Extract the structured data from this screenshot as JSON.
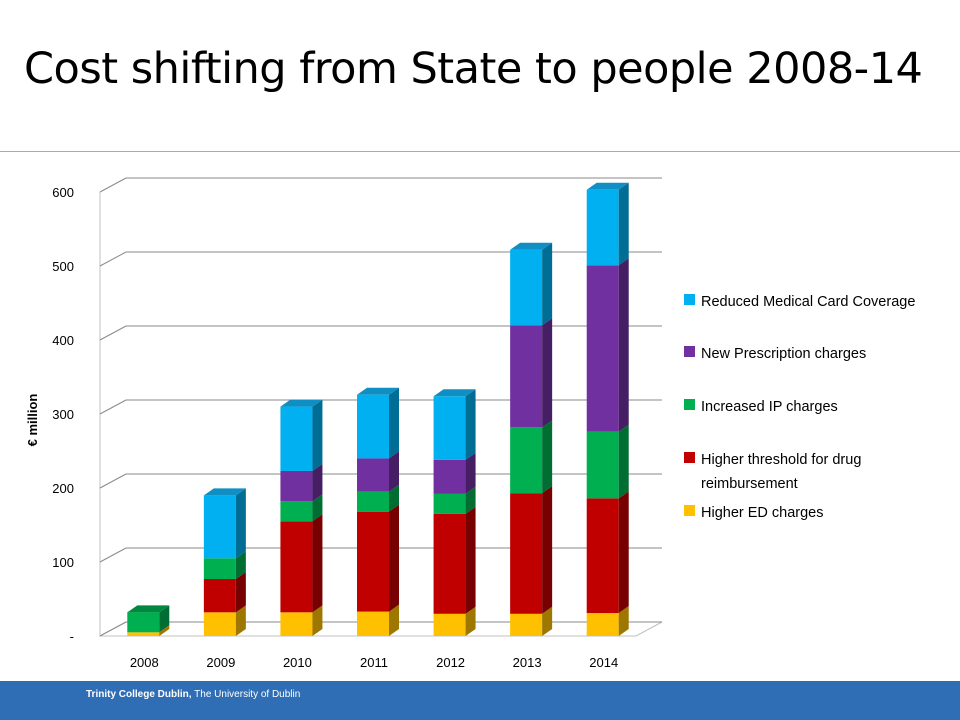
{
  "slide": {
    "title": "Cost shifting from State to people 2008-14"
  },
  "footer": {
    "institution": "Trinity College Dublin,",
    "university": " The University of Dublin"
  },
  "chart_data": {
    "type": "bar",
    "stacked": true,
    "three_d": true,
    "title": "",
    "xlabel": "",
    "ylabel": "€ million",
    "ylim": [
      0,
      600
    ],
    "yticks": [
      0,
      100,
      200,
      300,
      400,
      500,
      600
    ],
    "ytick_labels": [
      "-",
      "100",
      "200",
      "300",
      "400",
      "500",
      "600"
    ],
    "grid": true,
    "legend_position": "right",
    "categories": [
      "2008",
      "2009",
      "2010",
      "2011",
      "2012",
      "2013",
      "2014"
    ],
    "series": [
      {
        "name": "Higher ED charges",
        "color": "#ffc000",
        "values": [
          5,
          32,
          32,
          33,
          30,
          30,
          31
        ]
      },
      {
        "name": "Higher threshold for drug reimbursement",
        "color": "#c00000",
        "values": [
          0,
          45,
          123,
          135,
          135,
          163,
          155
        ]
      },
      {
        "name": "Increased IP charges",
        "color": "#00b050",
        "values": [
          27,
          28,
          27,
          27,
          27,
          89,
          90
        ]
      },
      {
        "name": "New Prescription charges",
        "color": "#7030a0",
        "values": [
          0,
          0,
          41,
          45,
          46,
          138,
          225
        ]
      },
      {
        "name": "Reduced Medical Card Coverage",
        "color": "#00b0f0",
        "values": [
          0,
          85,
          87,
          86,
          86,
          102,
          102
        ]
      }
    ],
    "legend_order": [
      "Reduced Medical Card Coverage",
      "New Prescription charges",
      "Increased IP charges",
      "Higher threshold for drug reimbursement",
      "Higher ED charges"
    ]
  }
}
